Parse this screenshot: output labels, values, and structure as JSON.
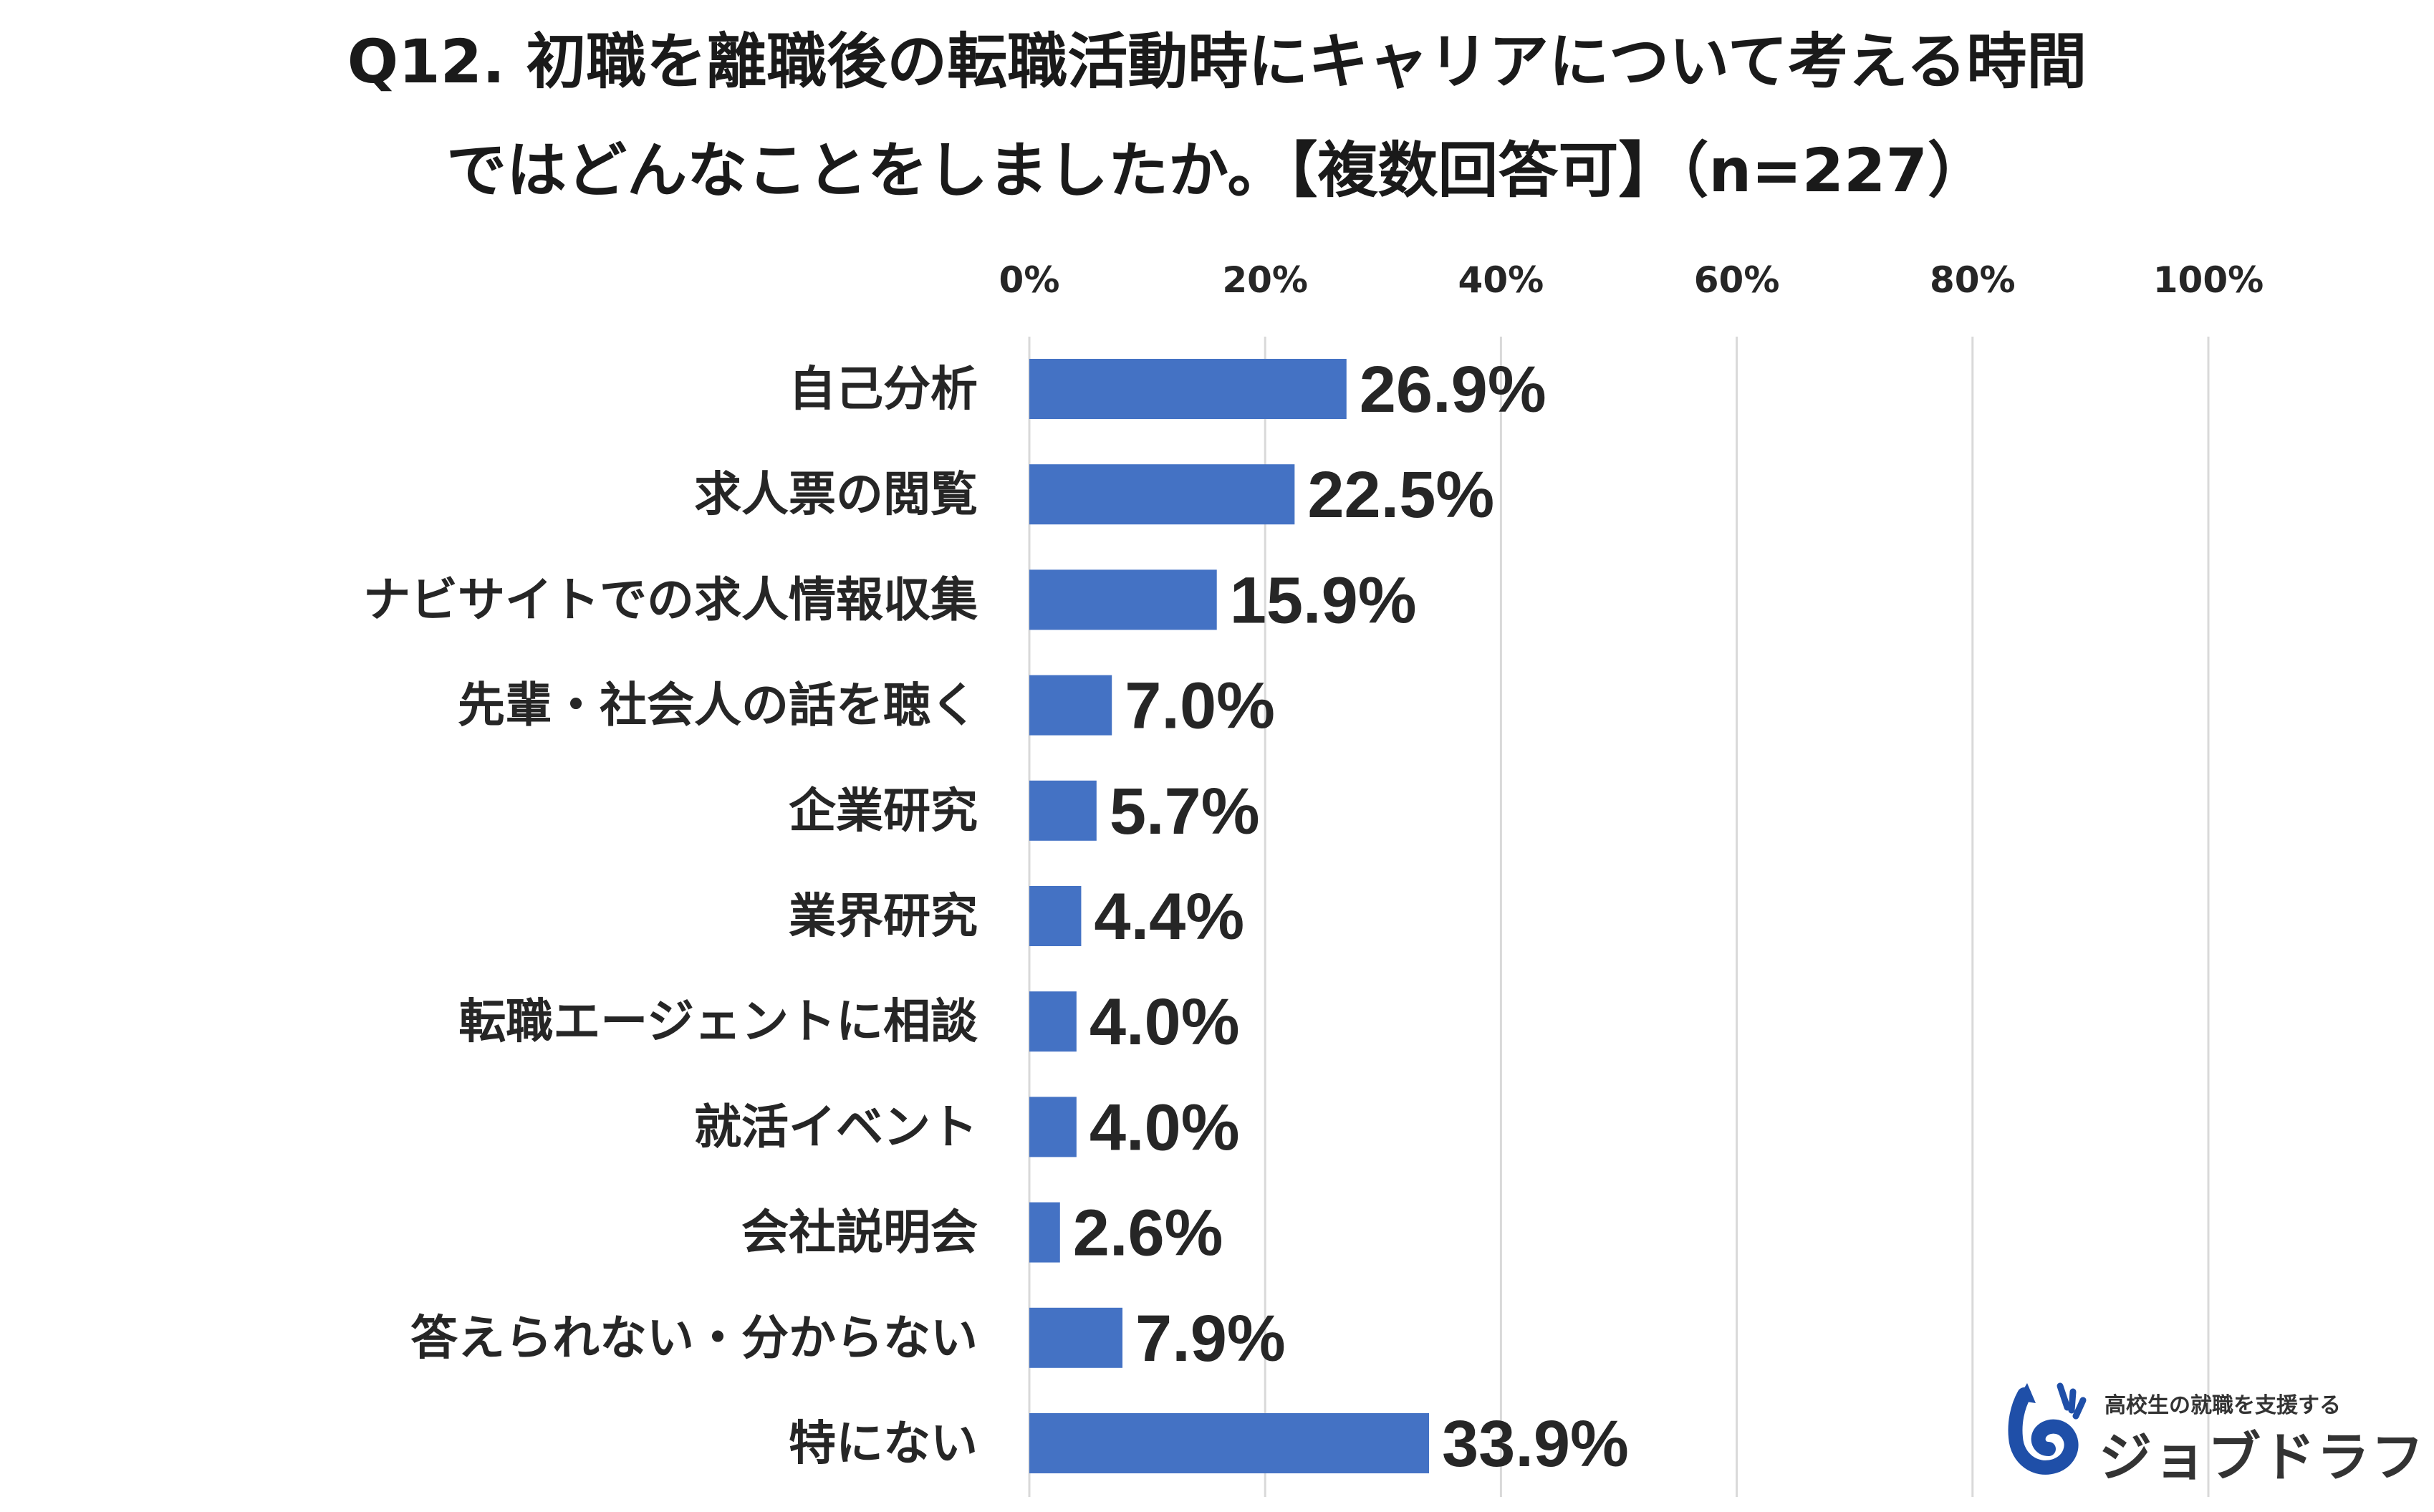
{
  "header": {
    "title_line1": "Q12. 初職を離職後の転職活動時にキャリアについて考える時間",
    "title_line2": "ではどんなことをしましたか。【複数回答可】（n=227）"
  },
  "chart_data": {
    "type": "bar",
    "orientation": "horizontal",
    "title": "Q12. 初職を離職後の転職活動時にキャリアについて考える時間ではどんなことをしましたか。【複数回答可】（n=227）",
    "xlabel": "",
    "ylabel": "",
    "xlim": [
      0,
      100
    ],
    "grid": true,
    "ticks": [
      {
        "value": 0,
        "label": "0%"
      },
      {
        "value": 20,
        "label": "20%"
      },
      {
        "value": 40,
        "label": "40%"
      },
      {
        "value": 60,
        "label": "60%"
      },
      {
        "value": 80,
        "label": "80%"
      },
      {
        "value": 100,
        "label": "100%"
      }
    ],
    "categories": [
      "自己分析",
      "求人票の閲覧",
      "ナビサイトでの求人情報収集",
      "先輩・社会人の話を聴く",
      "企業研究",
      "業界研究",
      "転職エージェントに相談",
      "就活イベント",
      "会社説明会",
      "答えられない・分からない",
      "特にない"
    ],
    "values": [
      26.9,
      22.5,
      15.9,
      7.0,
      5.7,
      4.4,
      4.0,
      4.0,
      2.6,
      7.9,
      33.9
    ],
    "value_labels": [
      "26.9%",
      "22.5%",
      "15.9%",
      "7.0%",
      "5.7%",
      "4.4%",
      "4.0%",
      "4.0%",
      "2.6%",
      "7.9%",
      "33.9%"
    ],
    "bar_color": "#4472C4",
    "grid_color": "#D9D9D9"
  },
  "logo": {
    "tagline": "高校生の就職を支援する",
    "name": "ジョブドラフト",
    "color": "#1F4FA8"
  }
}
